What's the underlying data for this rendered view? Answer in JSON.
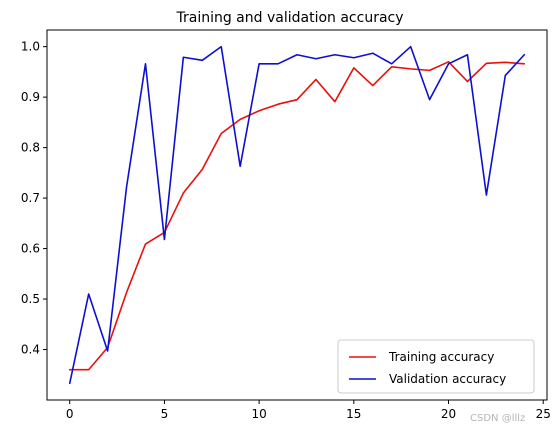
{
  "chart_data": {
    "type": "line",
    "title": "Training and validation accuracy",
    "xlabel": "",
    "ylabel": "",
    "xlim": [
      -1.2,
      25.2
    ],
    "ylim": [
      0.3,
      1.033
    ],
    "x_ticks": [
      0,
      5,
      10,
      15,
      20,
      25
    ],
    "y_ticks": [
      0.4,
      0.5,
      0.6,
      0.7,
      0.8,
      0.9,
      1.0
    ],
    "y_tick_labels": [
      "0.4",
      "0.5",
      "0.6",
      "0.7",
      "0.8",
      "0.9",
      "1.0"
    ],
    "grid": false,
    "legend_position": "lower-right",
    "x": [
      0,
      1,
      2,
      3,
      4,
      5,
      6,
      7,
      8,
      9,
      10,
      11,
      12,
      13,
      14,
      15,
      16,
      17,
      18,
      19,
      20,
      21,
      22,
      23,
      24
    ],
    "series": [
      {
        "name": "Training accuracy",
        "color": "#e8100b",
        "values": [
          0.36,
          0.36,
          0.404,
          0.513,
          0.609,
          0.632,
          0.71,
          0.757,
          0.828,
          0.856,
          0.873,
          0.886,
          0.895,
          0.935,
          0.891,
          0.958,
          0.923,
          0.96,
          0.956,
          0.953,
          0.97,
          0.931,
          0.967,
          0.969,
          0.966
        ]
      },
      {
        "name": "Validation accuracy",
        "color": "#0d10cf",
        "values": [
          0.333,
          0.51,
          0.397,
          0.722,
          0.966,
          0.618,
          0.979,
          0.973,
          1.0,
          0.763,
          0.966,
          0.966,
          0.984,
          0.976,
          0.984,
          0.978,
          0.987,
          0.966,
          1.0,
          0.895,
          0.966,
          0.984,
          0.706,
          0.943,
          0.984
        ]
      }
    ]
  },
  "watermark": "CSDN @lllz"
}
